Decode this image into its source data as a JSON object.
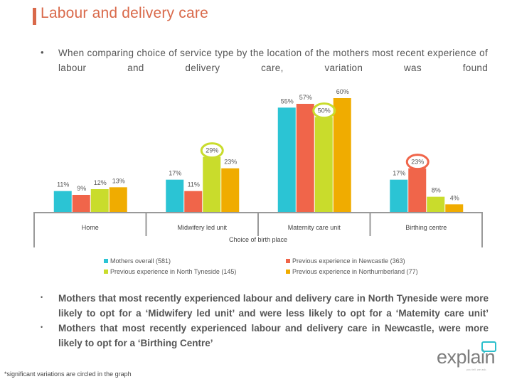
{
  "slide": {
    "title": "Labour and delivery care",
    "intro_bullet": "•",
    "intro_text": "When comparing choice of service type by the location of the mothers most recent experience of labour and delivery care, variation was found",
    "findings": [
      {
        "bullet": "•",
        "text": "Mothers that most recently experienced labour and delivery care in North Tyneside were more likely to opt for a ‘Midwifery led unit’ and were less likely to opt for a ‘Matemity care unit’"
      },
      {
        "bullet": "•",
        "text": "Mothers that most recently experienced labour and delivery care in Newcastle, were more likely to opt for a ‘Birthing Centre’"
      }
    ],
    "footnote": "*significant variations are circled in the graph",
    "logo": {
      "text": "explain",
      "tagline": "you tell. we ask.",
      "accent_color": "#2bbfcc"
    }
  },
  "chart_data": {
    "type": "bar",
    "title": "",
    "xlabel": "Choice of birth place",
    "ylabel": "",
    "ylim": [
      0,
      60
    ],
    "grid": false,
    "legend_position": "bottom",
    "value_suffix": "%",
    "categories": [
      "Home",
      "Midwifery led unit",
      "Maternity care unit",
      "Birthing centre"
    ],
    "series": [
      {
        "name": "Mothers overall (581)",
        "color": "#2bc4d4",
        "values": [
          11,
          17,
          55,
          17
        ]
      },
      {
        "name": "Previous experience in Newcastle (363)",
        "color": "#f0654a",
        "values": [
          9,
          11,
          57,
          23
        ]
      },
      {
        "name": "Previous experience in North Tyneside (145)",
        "color": "#c9dc2c",
        "values": [
          12,
          29,
          50,
          8
        ]
      },
      {
        "name": "Previous experience in Northumberland (77)",
        "color": "#f0ac00",
        "values": [
          13,
          23,
          60,
          4
        ]
      }
    ],
    "significant": [
      {
        "series": 2,
        "category": 1,
        "color": "#c9dc2c"
      },
      {
        "series": 2,
        "category": 2,
        "color": "#c9dc2c"
      },
      {
        "series": 1,
        "category": 3,
        "color": "#f0654a"
      }
    ]
  }
}
